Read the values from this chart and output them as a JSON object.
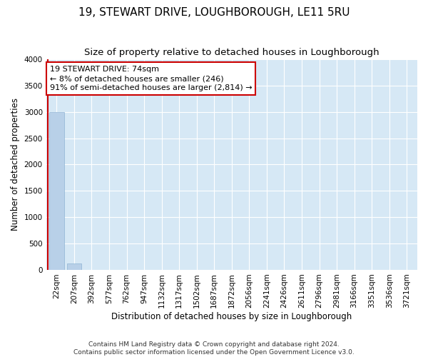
{
  "title1": "19, STEWART DRIVE, LOUGHBOROUGH, LE11 5RU",
  "title2": "Size of property relative to detached houses in Loughborough",
  "xlabel": "Distribution of detached houses by size in Loughborough",
  "ylabel": "Number of detached properties",
  "footnote1": "Contains HM Land Registry data © Crown copyright and database right 2024.",
  "footnote2": "Contains public sector information licensed under the Open Government Licence v3.0.",
  "categories": [
    "22sqm",
    "207sqm",
    "392sqm",
    "577sqm",
    "762sqm",
    "947sqm",
    "1132sqm",
    "1317sqm",
    "1502sqm",
    "1687sqm",
    "1872sqm",
    "2056sqm",
    "2241sqm",
    "2426sqm",
    "2611sqm",
    "2796sqm",
    "2981sqm",
    "3166sqm",
    "3351sqm",
    "3536sqm",
    "3721sqm"
  ],
  "values": [
    3000,
    120,
    0,
    0,
    0,
    0,
    0,
    0,
    0,
    0,
    0,
    0,
    0,
    0,
    0,
    0,
    0,
    0,
    0,
    0,
    0
  ],
  "bar_color": "#b8d0e8",
  "bar_edge_color": "#8fb4d4",
  "annotation_line1": "19 STEWART DRIVE: 74sqm",
  "annotation_line2": "← 8% of detached houses are smaller (246)",
  "annotation_line3": "91% of semi-detached houses are larger (2,814) →",
  "annotation_box_facecolor": "#ffffff",
  "annotation_box_edgecolor": "#cc0000",
  "vline_color": "#cc0000",
  "ylim_max": 4000,
  "yticks": [
    0,
    500,
    1000,
    1500,
    2000,
    2500,
    3000,
    3500,
    4000
  ],
  "plot_bg_color": "#d6e8f5",
  "grid_color": "#ffffff",
  "title1_fontsize": 11,
  "title2_fontsize": 9.5,
  "axis_label_fontsize": 8.5,
  "tick_fontsize": 7.5,
  "annotation_fontsize": 8,
  "footnote_fontsize": 6.5
}
